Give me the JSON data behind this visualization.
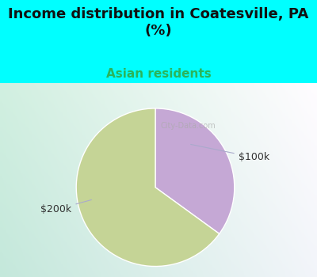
{
  "title": "Income distribution in Coatesville, PA\n(%)",
  "subtitle": "Asian residents",
  "title_color": "#111111",
  "subtitle_color": "#2ab55a",
  "cyan_bg": "#00ffff",
  "chart_bg_color": "#e8f5ee",
  "slices": [
    {
      "label": "$200k",
      "value": 65,
      "color": "#c5d496"
    },
    {
      "label": "$100k",
      "value": 35,
      "color": "#c5a8d5"
    }
  ],
  "label_color": "#333333",
  "line_color": "#aaaacc",
  "watermark": "City-Data.com",
  "watermark_color": "#aaaaaa",
  "figsize": [
    4.0,
    3.5
  ],
  "dpi": 100,
  "title_fontsize": 13,
  "subtitle_fontsize": 11
}
